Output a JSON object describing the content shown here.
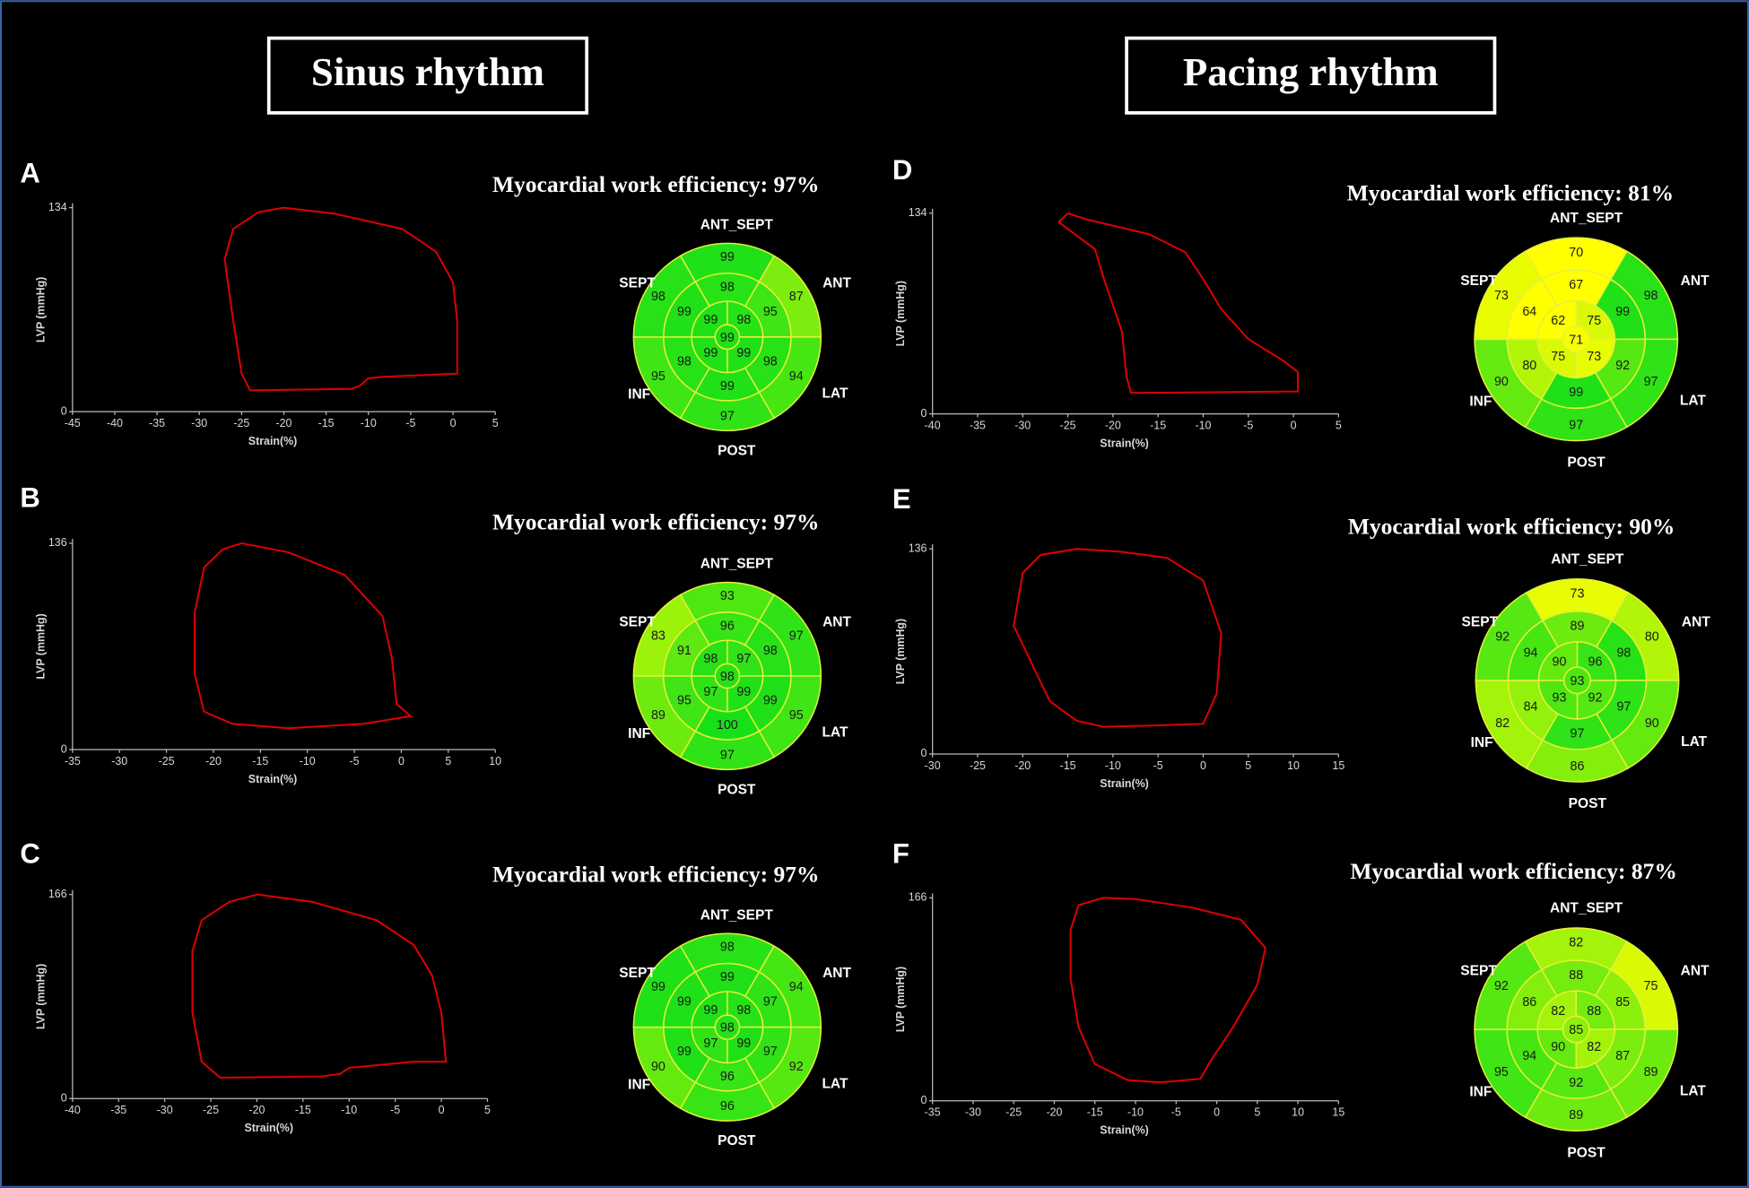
{
  "headings": [
    "Sinus rhythm",
    "Pacing rhythm"
  ],
  "chart_data": [
    {
      "type": "line",
      "panel": "A",
      "x_label": "Strain(%)",
      "y_label": "LVP (mmHg)",
      "xlim": [
        -45,
        5
      ],
      "xticks": [
        -45,
        -40,
        -35,
        -30,
        -25,
        -20,
        -15,
        -10,
        -5,
        0,
        5
      ],
      "ylim": [
        0,
        134
      ],
      "yticks": [
        0,
        134
      ],
      "series": [
        {
          "color": "#e00000",
          "x": [
            -20,
            -14,
            -6,
            -2,
            0,
            0.5,
            0.5,
            -8,
            -10,
            -11,
            -12,
            -24,
            -25,
            -26,
            -27,
            -26,
            -23,
            -20
          ],
          "values": [
            134,
            130,
            120,
            105,
            85,
            60,
            25,
            23,
            22,
            17,
            15,
            14,
            25,
            60,
            100,
            120,
            131,
            134
          ]
        }
      ]
    },
    {
      "type": "bullseye",
      "title": "Myocardial work efficiency: 97%",
      "labels": [
        "ANT_SEPT",
        "ANT",
        "LAT",
        "POST",
        "INF",
        "SEPT"
      ],
      "basal": [
        99,
        87,
        94,
        97,
        95,
        98
      ],
      "mid": [
        98,
        95,
        98,
        99,
        98,
        99
      ],
      "apical": [
        98,
        99,
        99,
        99
      ],
      "apex": 99,
      "colors": [
        "#ffff00",
        "#18e018"
      ]
    },
    {
      "type": "line",
      "panel": "B",
      "x_label": "Strain(%)",
      "y_label": "LVP (mmHg)",
      "xlim": [
        -35,
        10
      ],
      "xticks": [
        -35,
        -30,
        -25,
        -20,
        -15,
        -10,
        -5,
        0,
        5,
        10
      ],
      "ylim": [
        0,
        136
      ],
      "yticks": [
        0,
        136
      ],
      "series": [
        {
          "color": "#e00000",
          "x": [
            -17,
            -12,
            -6,
            -2,
            -1,
            -0.5,
            1,
            -4,
            -12,
            -18,
            -21,
            -22,
            -22,
            -21,
            -19,
            -17
          ],
          "values": [
            136,
            130,
            115,
            88,
            60,
            30,
            22,
            17,
            14,
            17,
            25,
            50,
            90,
            120,
            132,
            136
          ]
        }
      ]
    },
    {
      "type": "bullseye",
      "title": "Myocardial work efficiency: 97%",
      "labels": [
        "ANT_SEPT",
        "ANT",
        "LAT",
        "POST",
        "INF",
        "SEPT"
      ],
      "basal": [
        93,
        97,
        95,
        97,
        89,
        83
      ],
      "mid": [
        96,
        98,
        99,
        100,
        95,
        91
      ],
      "apical": [
        97,
        99,
        97,
        98
      ],
      "apex": 98,
      "colors": [
        "#ffff00",
        "#18e018"
      ]
    },
    {
      "type": "line",
      "panel": "C",
      "x_label": "Strain(%)",
      "y_label": "LVP (mmHg)",
      "xlim": [
        -40,
        5
      ],
      "xticks": [
        -40,
        -35,
        -30,
        -25,
        -20,
        -15,
        -10,
        -5,
        0,
        5
      ],
      "ylim": [
        0,
        166
      ],
      "yticks": [
        0,
        166
      ],
      "series": [
        {
          "color": "#e00000",
          "x": [
            -20,
            -14,
            -7,
            -3,
            -1,
            0,
            0.5,
            -3,
            -10,
            -11,
            -13,
            -24,
            -26,
            -27,
            -27,
            -26,
            -23,
            -20
          ],
          "values": [
            166,
            160,
            145,
            125,
            100,
            70,
            30,
            30,
            25,
            20,
            18,
            17,
            30,
            70,
            120,
            145,
            160,
            166
          ]
        }
      ]
    },
    {
      "type": "bullseye",
      "title": "Myocardial work efficiency: 97%",
      "labels": [
        "ANT_SEPT",
        "ANT",
        "LAT",
        "POST",
        "INF",
        "SEPT"
      ],
      "basal": [
        98,
        94,
        92,
        96,
        90,
        99
      ],
      "mid": [
        99,
        97,
        97,
        96,
        99,
        99
      ],
      "apical": [
        98,
        99,
        97,
        99
      ],
      "apex": 98,
      "colors": [
        "#ffff00",
        "#18e018"
      ]
    },
    {
      "type": "line",
      "panel": "D",
      "x_label": "Strain(%)",
      "y_label": "LVP (mmHg)",
      "xlim": [
        -40,
        5
      ],
      "xticks": [
        -40,
        -35,
        -30,
        -25,
        -20,
        -15,
        -10,
        -5,
        0,
        5
      ],
      "ylim": [
        0,
        134
      ],
      "yticks": [
        0,
        134
      ],
      "series": [
        {
          "color": "#e00000",
          "x": [
            -25,
            -23,
            -16,
            -12,
            -10,
            -8,
            -5,
            -1,
            0.5,
            0.5,
            -18,
            -18.5,
            -19,
            -21,
            -22,
            -26,
            -25
          ],
          "values": [
            134,
            130,
            120,
            108,
            90,
            70,
            50,
            35,
            28,
            15,
            14,
            25,
            55,
            90,
            110,
            128,
            134
          ]
        }
      ]
    },
    {
      "type": "bullseye",
      "title": "Myocardial work efficiency: 81%",
      "labels": [
        "ANT_SEPT",
        "ANT",
        "LAT",
        "POST",
        "INF",
        "SEPT"
      ],
      "basal": [
        70,
        98,
        97,
        97,
        90,
        73
      ],
      "mid": [
        67,
        99,
        92,
        99,
        80,
        64
      ],
      "apical": [
        75,
        73,
        75,
        62
      ],
      "apex": 71,
      "colors": [
        "#ffff00",
        "#18e018"
      ]
    },
    {
      "type": "line",
      "panel": "E",
      "x_label": "Strain(%)",
      "y_label": "LVP (mmHg)",
      "xlim": [
        -30,
        15
      ],
      "xticks": [
        -30,
        -25,
        -20,
        -15,
        -10,
        -5,
        0,
        5,
        10,
        15
      ],
      "ylim": [
        0,
        136
      ],
      "yticks": [
        0,
        136
      ],
      "series": [
        {
          "color": "#e00000",
          "x": [
            -14,
            -9,
            -4,
            0,
            2,
            1.5,
            0,
            -5,
            -11,
            -14,
            -17,
            -19,
            -21,
            -20,
            -18,
            -14
          ],
          "values": [
            136,
            134,
            130,
            115,
            80,
            40,
            20,
            19,
            18,
            22,
            35,
            60,
            85,
            120,
            132,
            136
          ]
        }
      ]
    },
    {
      "type": "bullseye",
      "title": "Myocardial work efficiency: 90%",
      "labels": [
        "ANT_SEPT",
        "ANT",
        "LAT",
        "POST",
        "INF",
        "SEPT"
      ],
      "basal": [
        73,
        80,
        90,
        86,
        82,
        92
      ],
      "mid": [
        89,
        98,
        97,
        97,
        84,
        94
      ],
      "apical": [
        96,
        92,
        93,
        90
      ],
      "apex": 93,
      "colors": [
        "#ffff00",
        "#18e018"
      ]
    },
    {
      "type": "line",
      "panel": "F",
      "x_label": "Strain(%)",
      "y_label": "LVP (mmHg)",
      "xlim": [
        -35,
        15
      ],
      "xticks": [
        -35,
        -30,
        -25,
        -20,
        -15,
        -10,
        -5,
        0,
        5,
        10,
        15
      ],
      "ylim": [
        0,
        166
      ],
      "yticks": [
        0,
        166
      ],
      "series": [
        {
          "color": "#e00000",
          "x": [
            -14,
            -10,
            -3,
            3,
            6,
            5,
            2,
            -1,
            -2,
            -7,
            -11,
            -15,
            -17,
            -18,
            -18,
            -17,
            -14
          ],
          "values": [
            166,
            165,
            158,
            148,
            125,
            95,
            60,
            30,
            18,
            15,
            17,
            30,
            60,
            100,
            140,
            160,
            166
          ]
        }
      ]
    },
    {
      "type": "bullseye",
      "title": "Myocardial work efficiency: 87%",
      "labels": [
        "ANT_SEPT",
        "ANT",
        "LAT",
        "POST",
        "INF",
        "SEPT"
      ],
      "basal": [
        82,
        75,
        89,
        89,
        95,
        92
      ],
      "mid": [
        88,
        85,
        87,
        92,
        94,
        86
      ],
      "apical": [
        88,
        82,
        90,
        82
      ],
      "apex": 85,
      "colors": [
        "#ffff00",
        "#18e018"
      ]
    }
  ]
}
